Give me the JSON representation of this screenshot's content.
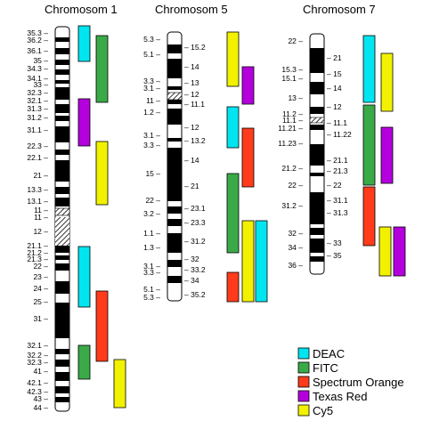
{
  "chromosomes": [
    {
      "title": "Chromosom 1",
      "left_labels": [
        "35.3",
        "36.2",
        "36.1",
        "35",
        "34.3",
        "34.1",
        "33",
        "32.3",
        "32.1",
        "31.3",
        "31.2",
        "31.1",
        "22.3",
        "22.1",
        "21",
        "13.3",
        "13.1",
        "11",
        "11",
        "12",
        "21.1",
        "21.2",
        "21.3",
        "22",
        "23",
        "24",
        "25",
        "31",
        "32.1",
        "32.2",
        "32.3",
        "41",
        "42.1",
        "42.3",
        "43",
        "44"
      ],
      "right_labels": []
    },
    {
      "title": "Chromosom 5",
      "left_labels": [
        "5.3",
        "5.1",
        "3.3",
        "3.1",
        "11",
        "1.2",
        "3.1",
        "3.3",
        "15",
        "22",
        "3.2",
        "1.1",
        "1.3",
        "3.1",
        "3.3",
        "5.1",
        "5.3"
      ],
      "right_labels": [
        "15.2",
        "14",
        "13",
        "12",
        "11.1",
        "12",
        "13.2",
        "14",
        "21",
        "23.1",
        "23.3",
        "31.2",
        "32",
        "33.2",
        "34",
        "35.2"
      ]
    },
    {
      "title": "Chromosom 7",
      "left_labels": [
        "22",
        "15.3",
        "15.1",
        "13",
        "11.2",
        "11.1",
        "11.21",
        "11.23",
        "21.2",
        "22",
        "31.2",
        "32",
        "34",
        "36"
      ],
      "right_labels": [
        "21",
        "15",
        "14",
        "12",
        "11.1",
        "11.22",
        "21.1",
        "21.3",
        "22",
        "31.1",
        "31.3",
        "33",
        "35"
      ]
    }
  ],
  "legend": [
    {
      "label": "DEAC",
      "color": "#00e5f0"
    },
    {
      "label": "FITC",
      "color": "#3aaa48"
    },
    {
      "label": "Spectrum Orange",
      "color": "#ff3b1c"
    },
    {
      "label": "Texas Red",
      "color": "#b400dd"
    },
    {
      "label": "Cy5",
      "color": "#f2f200"
    }
  ]
}
